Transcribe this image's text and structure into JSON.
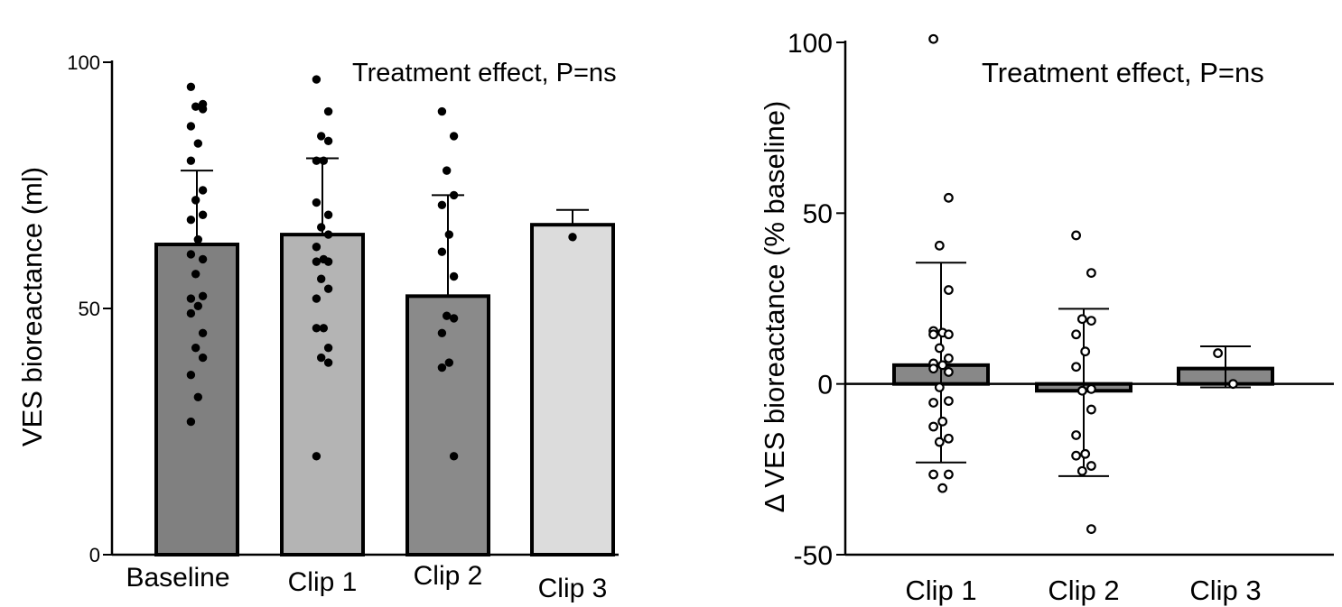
{
  "chart_data": [
    {
      "type": "bar",
      "title": "",
      "ylabel": "VES bioreactance (ml)",
      "xlabel": "",
      "ylim": [
        0,
        100
      ],
      "yticks": [
        0,
        50,
        100
      ],
      "annotation": "Treatment effect, P=ns",
      "categories": [
        "Baseline",
        "Clip 1",
        "Clip 2",
        "Clip 3"
      ],
      "values": [
        63,
        65,
        52.5,
        67
      ],
      "error_upper": [
        78,
        80.5,
        73,
        70
      ],
      "error_lower": [
        63,
        65,
        52.5,
        67
      ],
      "bar_colors": [
        "#808080",
        "#b4b4b4",
        "#8a8a8a",
        "#dcdcdc"
      ],
      "points": [
        [
          95,
          91.5,
          91,
          90.5,
          87,
          83.5,
          80,
          74,
          72,
          69,
          68,
          64,
          61,
          60,
          57,
          52.5,
          52,
          50.5,
          49,
          45,
          42,
          40,
          36.5,
          32,
          27
        ],
        [
          96.5,
          90,
          85,
          84,
          80,
          80,
          71.5,
          69,
          66.5,
          65,
          62.5,
          60,
          59.5,
          59.5,
          56,
          54,
          52,
          46,
          46,
          42,
          40,
          39,
          20
        ],
        [
          90,
          85,
          78,
          73,
          71,
          65,
          61.5,
          56.5,
          48.5,
          48,
          45,
          39,
          38,
          20
        ],
        [
          64.5
        ]
      ],
      "colors": {
        "marker": "#000000",
        "axis": "#000000"
      }
    },
    {
      "type": "bar",
      "title": "",
      "ylabel": "Δ VES bioreactance (% baseline)",
      "xlabel": "",
      "ylim": [
        -50,
        100
      ],
      "yticks": [
        -50,
        0,
        50,
        100
      ],
      "annotation": "Treatment effect, P=ns",
      "categories": [
        "Clip 1",
        "Clip 2",
        "Clip 3"
      ],
      "values": [
        5.5,
        -2,
        4.5
      ],
      "error_upper": [
        35.5,
        22,
        11
      ],
      "error_lower": [
        -23,
        -27,
        -1
      ],
      "bar_colors": [
        "#888888",
        "#888888",
        "#888888"
      ],
      "points": [
        [
          101,
          54.5,
          40.5,
          27.5,
          15.5,
          15,
          14.5,
          14.5,
          10.5,
          7.5,
          6,
          5.5,
          4.5,
          3.5,
          -1,
          -5,
          -5.5,
          -11,
          -12.5,
          -16,
          -17,
          -26.5,
          -26.5,
          -30.5
        ],
        [
          43.5,
          32.5,
          19,
          18.5,
          14.5,
          9.5,
          5,
          -1.5,
          -2,
          -7.5,
          -15,
          -20.5,
          -21,
          -24,
          -25.5,
          -42.5
        ],
        [
          9,
          0
        ]
      ],
      "colors": {
        "marker": "#000000",
        "axis": "#000000"
      }
    }
  ]
}
